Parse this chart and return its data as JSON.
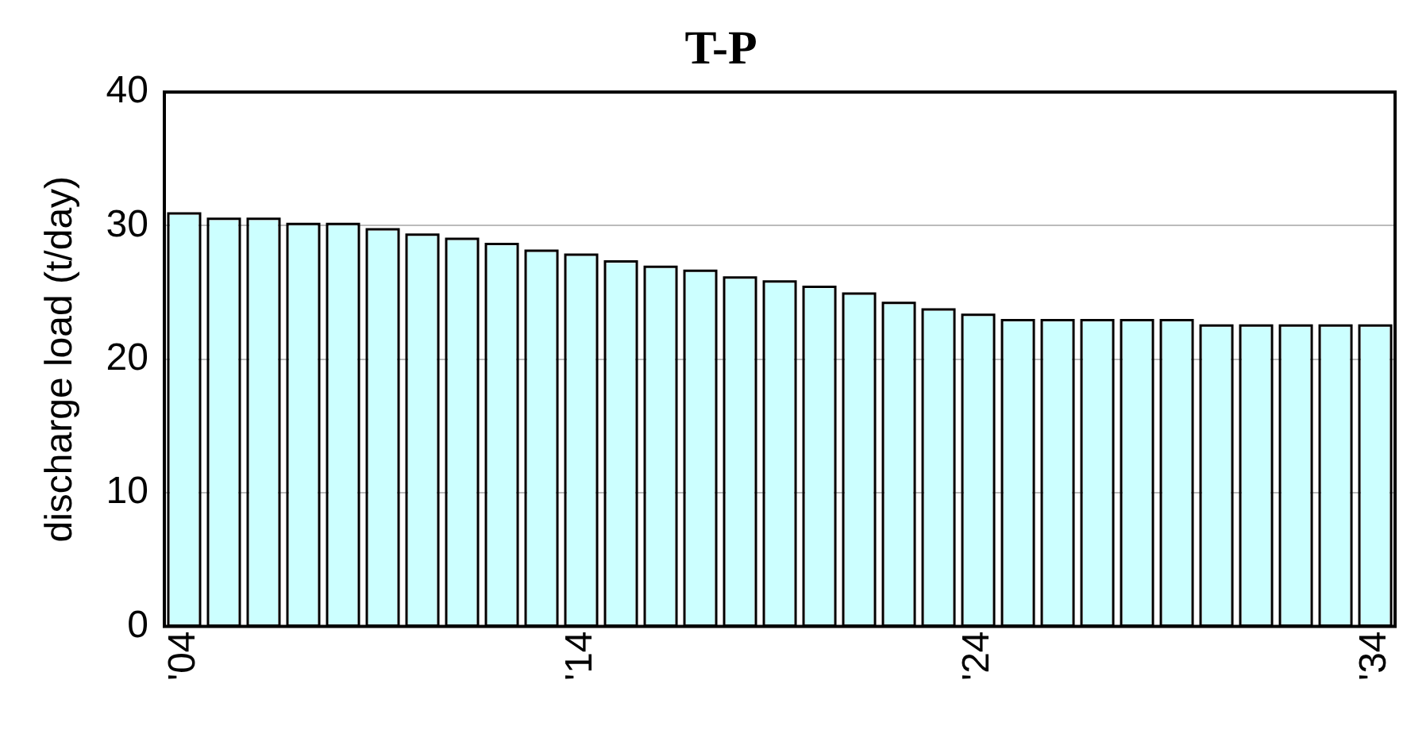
{
  "chart_data": {
    "type": "bar",
    "title": "T-P",
    "ylabel": "discharge load (t/day)",
    "categories": [
      "'04",
      null,
      null,
      null,
      null,
      null,
      null,
      null,
      null,
      null,
      "'14",
      null,
      null,
      null,
      null,
      null,
      null,
      null,
      null,
      null,
      "'24",
      null,
      null,
      null,
      null,
      null,
      null,
      null,
      null,
      null,
      "'34"
    ],
    "values": [
      30.8,
      30.4,
      30.4,
      30.0,
      30.0,
      29.6,
      29.2,
      28.9,
      28.5,
      28.0,
      27.7,
      27.2,
      26.8,
      26.5,
      26.0,
      25.7,
      25.3,
      24.8,
      24.1,
      23.6,
      23.2,
      22.8,
      22.8,
      22.8,
      22.8,
      22.8,
      22.4,
      22.4,
      22.4,
      22.4,
      22.4
    ],
    "color": "#ccffff",
    "ylim": [
      0,
      40
    ],
    "yticks": [
      0,
      10,
      20,
      30,
      40
    ],
    "grid": "y",
    "legend": false
  }
}
